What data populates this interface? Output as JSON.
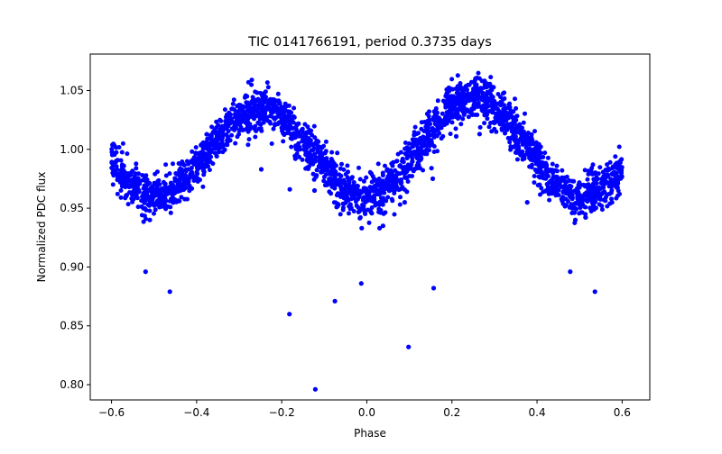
{
  "chart_data": {
    "type": "scatter",
    "title": "TIC 0141766191, period 0.3735 days",
    "xlabel": "Phase",
    "ylabel": "Normalized PDC flux",
    "xlim": [
      -0.65,
      0.665
    ],
    "ylim": [
      0.787,
      1.081
    ],
    "xticks": [
      -0.6,
      -0.4,
      -0.2,
      0.0,
      0.2,
      0.4,
      0.6
    ],
    "xtick_labels": [
      "−0.6",
      "−0.4",
      "−0.2",
      "0.0",
      "0.2",
      "0.4",
      "0.6"
    ],
    "yticks": [
      0.8,
      0.85,
      0.9,
      0.95,
      1.0,
      1.05
    ],
    "ytick_labels": [
      "0.80",
      "0.85",
      "0.90",
      "0.95",
      "1.00",
      "1.05"
    ],
    "grid": false,
    "marker_color": "#0000ff",
    "series": [
      {
        "band": {
          "description_free": true,
          "x_range": [
            -0.6,
            0.6
          ],
          "n_points": 2600,
          "model": {
            "mean": 1.0,
            "amplitude": 0.04,
            "period_in_phase": 0.5,
            "peak_phase": 0.25,
            "scatter": 0.009
          }
        },
        "outliers": [
          [
            -0.52,
            0.896
          ],
          [
            -0.463,
            0.879
          ],
          [
            -0.51,
            0.94
          ],
          [
            -0.248,
            0.983
          ],
          [
            -0.182,
            0.86
          ],
          [
            -0.181,
            0.966
          ],
          [
            -0.123,
            0.965
          ],
          [
            -0.121,
            0.796
          ],
          [
            -0.126,
            0.979
          ],
          [
            -0.175,
            1.01
          ],
          [
            -0.168,
            0.992
          ],
          [
            -0.075,
            0.871
          ],
          [
            -0.071,
            0.951
          ],
          [
            -0.013,
            0.886
          ],
          [
            -0.012,
            0.933
          ],
          [
            0.03,
            0.933
          ],
          [
            0.038,
            0.935
          ],
          [
            0.098,
            0.832
          ],
          [
            0.094,
            0.964
          ],
          [
            0.089,
            0.955
          ],
          [
            0.152,
            0.984
          ],
          [
            0.157,
            0.882
          ],
          [
            0.155,
            0.975
          ],
          [
            0.21,
            1.011
          ],
          [
            0.265,
            1.013
          ],
          [
            0.377,
            0.955
          ],
          [
            0.478,
            0.896
          ],
          [
            0.536,
            0.879
          ],
          [
            0.49,
            0.94
          ]
        ]
      }
    ]
  }
}
